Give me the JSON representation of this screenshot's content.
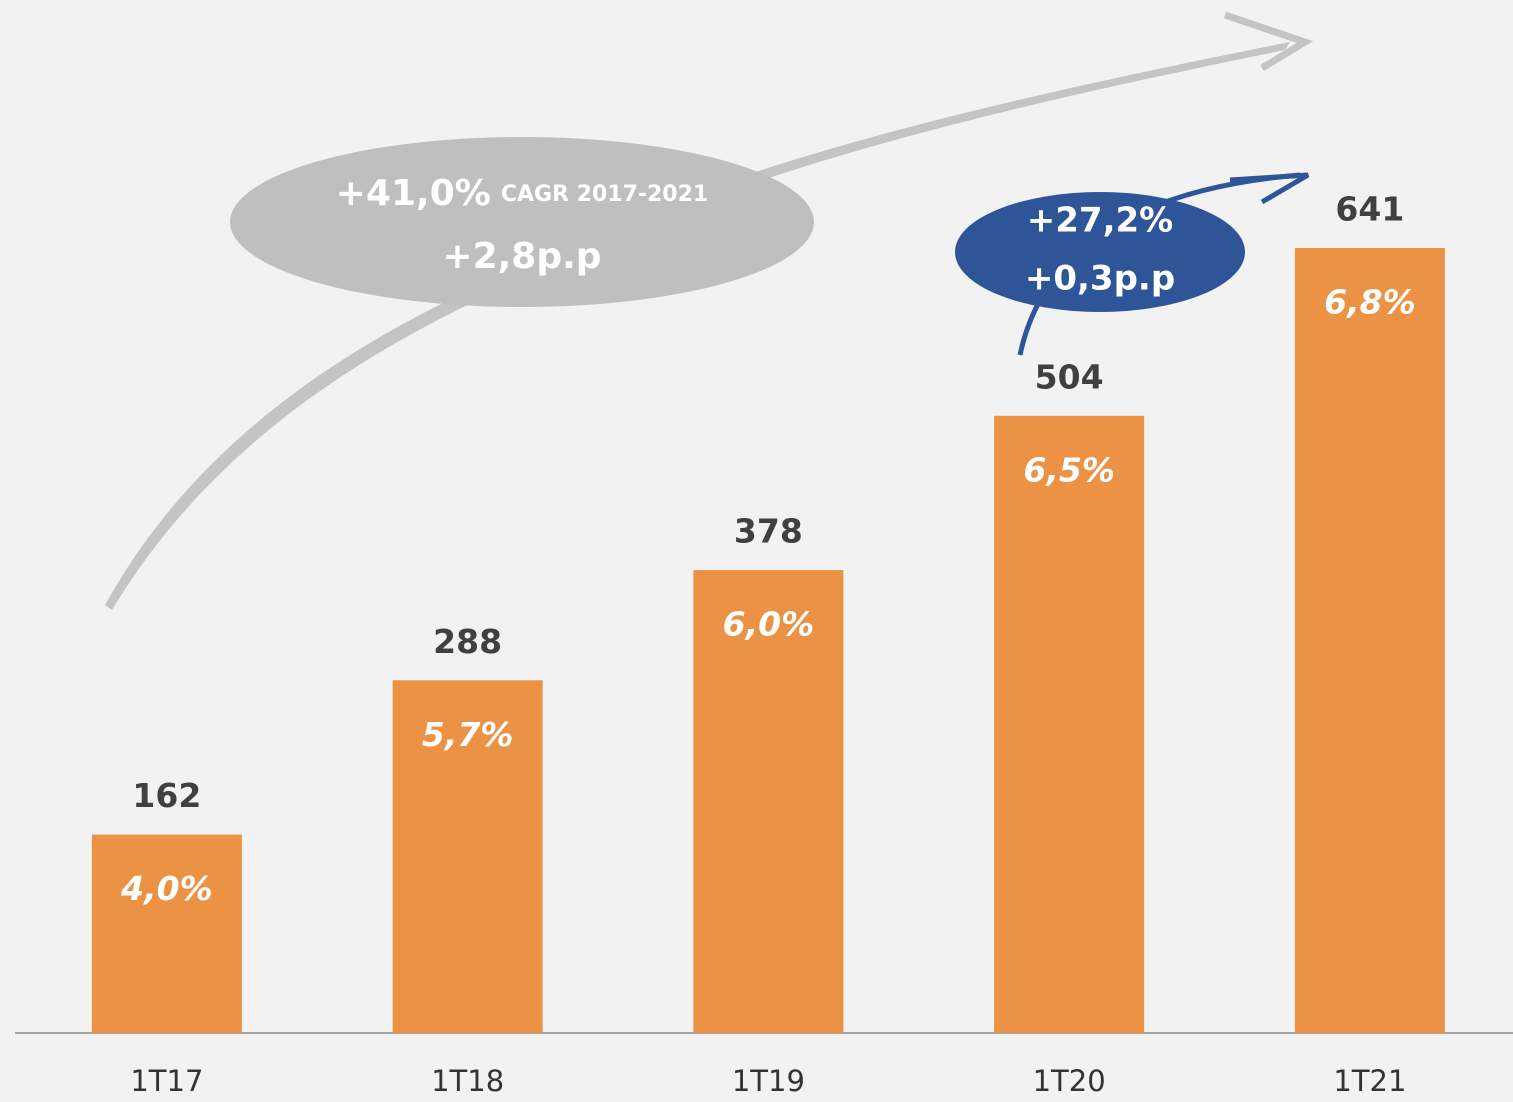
{
  "chart_data": {
    "type": "bar",
    "categories": [
      "1T17",
      "1T18",
      "1T19",
      "1T20",
      "1T21"
    ],
    "values": [
      162,
      288,
      378,
      504,
      641
    ],
    "color": "#ec9244",
    "margin": {
      "values": [
        4.0,
        5.7,
        6.0,
        6.5,
        6.8
      ],
      "value_labels": [
        "4,0%",
        "5,7%",
        "6,0%",
        "6,5%",
        "6,8%"
      ]
    },
    "annotations": [
      {
        "growth": "+41,0%",
        "note": "CAGR 2017-2021",
        "change": "+2,8p.p",
        "color": "#bfbfbf"
      },
      {
        "growth": "+27,2%",
        "change": "+0,3p.p",
        "color": "#2e5597"
      }
    ]
  }
}
